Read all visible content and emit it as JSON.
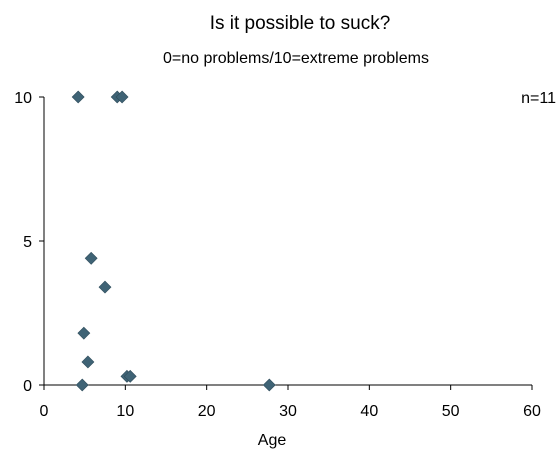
{
  "chart_data": {
    "type": "scatter",
    "title": "Is it possible to suck?",
    "subtitle": "0=no problems/10=extreme problems",
    "xlabel": "Age",
    "ylabel": "",
    "xlim": [
      0,
      60
    ],
    "ylim": [
      0,
      10
    ],
    "x_ticks": [
      0,
      10,
      20,
      30,
      40,
      50,
      60
    ],
    "y_ticks": [
      0,
      5,
      10
    ],
    "grid": false,
    "annotation": "n=11",
    "marker_color": "#3f6375",
    "points": [
      {
        "x": 4.2,
        "y": 10
      },
      {
        "x": 9.0,
        "y": 10
      },
      {
        "x": 9.6,
        "y": 10
      },
      {
        "x": 5.8,
        "y": 4.4
      },
      {
        "x": 7.5,
        "y": 3.4
      },
      {
        "x": 4.9,
        "y": 1.8
      },
      {
        "x": 5.4,
        "y": 0.8
      },
      {
        "x": 10.2,
        "y": 0.3
      },
      {
        "x": 10.6,
        "y": 0.3
      },
      {
        "x": 4.7,
        "y": 0
      },
      {
        "x": 27.7,
        "y": 0
      }
    ]
  }
}
